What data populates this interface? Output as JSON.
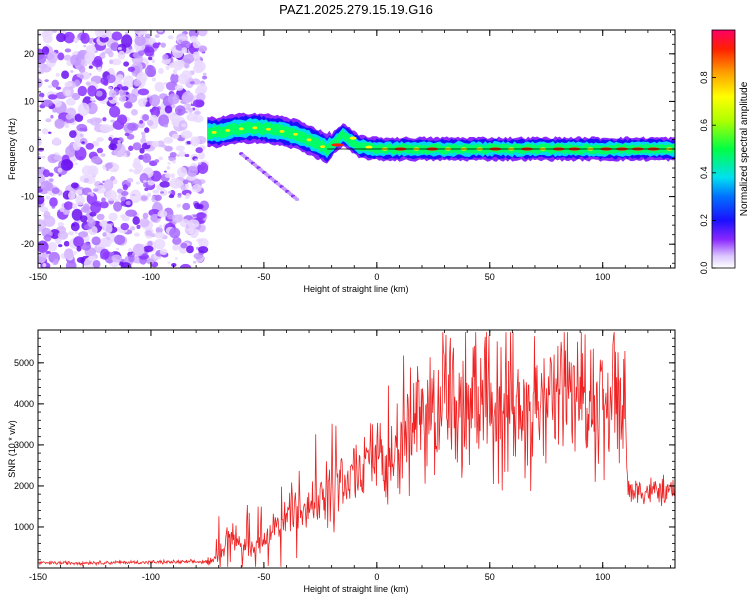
{
  "figure": {
    "title": "PAZ1.2025.279.15.19.G16"
  },
  "chart_data": [
    {
      "type": "heatmap",
      "title": "PAZ1.2025.279.15.19.G16",
      "xlabel": "Height of straight line (km)",
      "ylabel": "Frequency (Hz)",
      "xlim": [
        -150,
        132
      ],
      "ylim": [
        -25,
        25
      ],
      "xticks": [
        "-150",
        "-100",
        "-50",
        "0",
        "50",
        "100"
      ],
      "yticks": [
        "20",
        "10",
        "0",
        "-10",
        "-20"
      ],
      "colorbar": {
        "label": "Normalized spectral amplitude",
        "range": [
          0,
          1
        ],
        "ticks": [
          "0.0",
          "0.2",
          "0.4",
          "0.6",
          "0.8"
        ]
      },
      "description_ridge": [
        {
          "x": -75,
          "f": 3.5
        },
        {
          "x": -70,
          "f": 3.5
        },
        {
          "x": -65,
          "f": 4
        },
        {
          "x": -55,
          "f": 4.5
        },
        {
          "x": -45,
          "f": 4
        },
        {
          "x": -35,
          "f": 3
        },
        {
          "x": -28,
          "f": 1.5
        },
        {
          "x": -22,
          "f": 0
        },
        {
          "x": -15,
          "f": 3
        },
        {
          "x": -8,
          "f": 0.5
        },
        {
          "x": 0,
          "f": 0
        },
        {
          "x": 132,
          "f": 0
        }
      ],
      "noise_region": [
        -150,
        -76
      ]
    },
    {
      "type": "line",
      "xlabel": "Height of straight line (km)",
      "ylabel": "SNR (10 * v/v)",
      "xlim": [
        -150,
        132
      ],
      "ylim": [
        0,
        5800
      ],
      "xticks": [
        "-150",
        "-100",
        "-50",
        "0",
        "50",
        "100"
      ],
      "yticks": [
        "1000",
        "2000",
        "3000",
        "4000",
        "5000"
      ],
      "series": [
        {
          "name": "SNR",
          "color": "#ee2222",
          "trend": [
            {
              "x": -150,
              "y": 120
            },
            {
              "x": -75,
              "y": 150
            },
            {
              "x": -70,
              "y": 300
            },
            {
              "x": -64,
              "y": 900
            },
            {
              "x": -60,
              "y": 450
            },
            {
              "x": -50,
              "y": 700
            },
            {
              "x": -40,
              "y": 1200
            },
            {
              "x": -30,
              "y": 1700
            },
            {
              "x": -20,
              "y": 1950
            },
            {
              "x": -10,
              "y": 2250
            },
            {
              "x": 0,
              "y": 2700
            },
            {
              "x": 10,
              "y": 3300
            },
            {
              "x": 20,
              "y": 3650
            },
            {
              "x": 30,
              "y": 3850
            },
            {
              "x": 40,
              "y": 4000
            },
            {
              "x": 50,
              "y": 4100
            },
            {
              "x": 60,
              "y": 4000
            },
            {
              "x": 70,
              "y": 3900
            },
            {
              "x": 80,
              "y": 4000
            },
            {
              "x": 90,
              "y": 3950
            },
            {
              "x": 100,
              "y": 4000
            },
            {
              "x": 110,
              "y": 4150
            },
            {
              "x": 111,
              "y": 1900
            },
            {
              "x": 132,
              "y": 1850
            }
          ]
        }
      ]
    }
  ]
}
